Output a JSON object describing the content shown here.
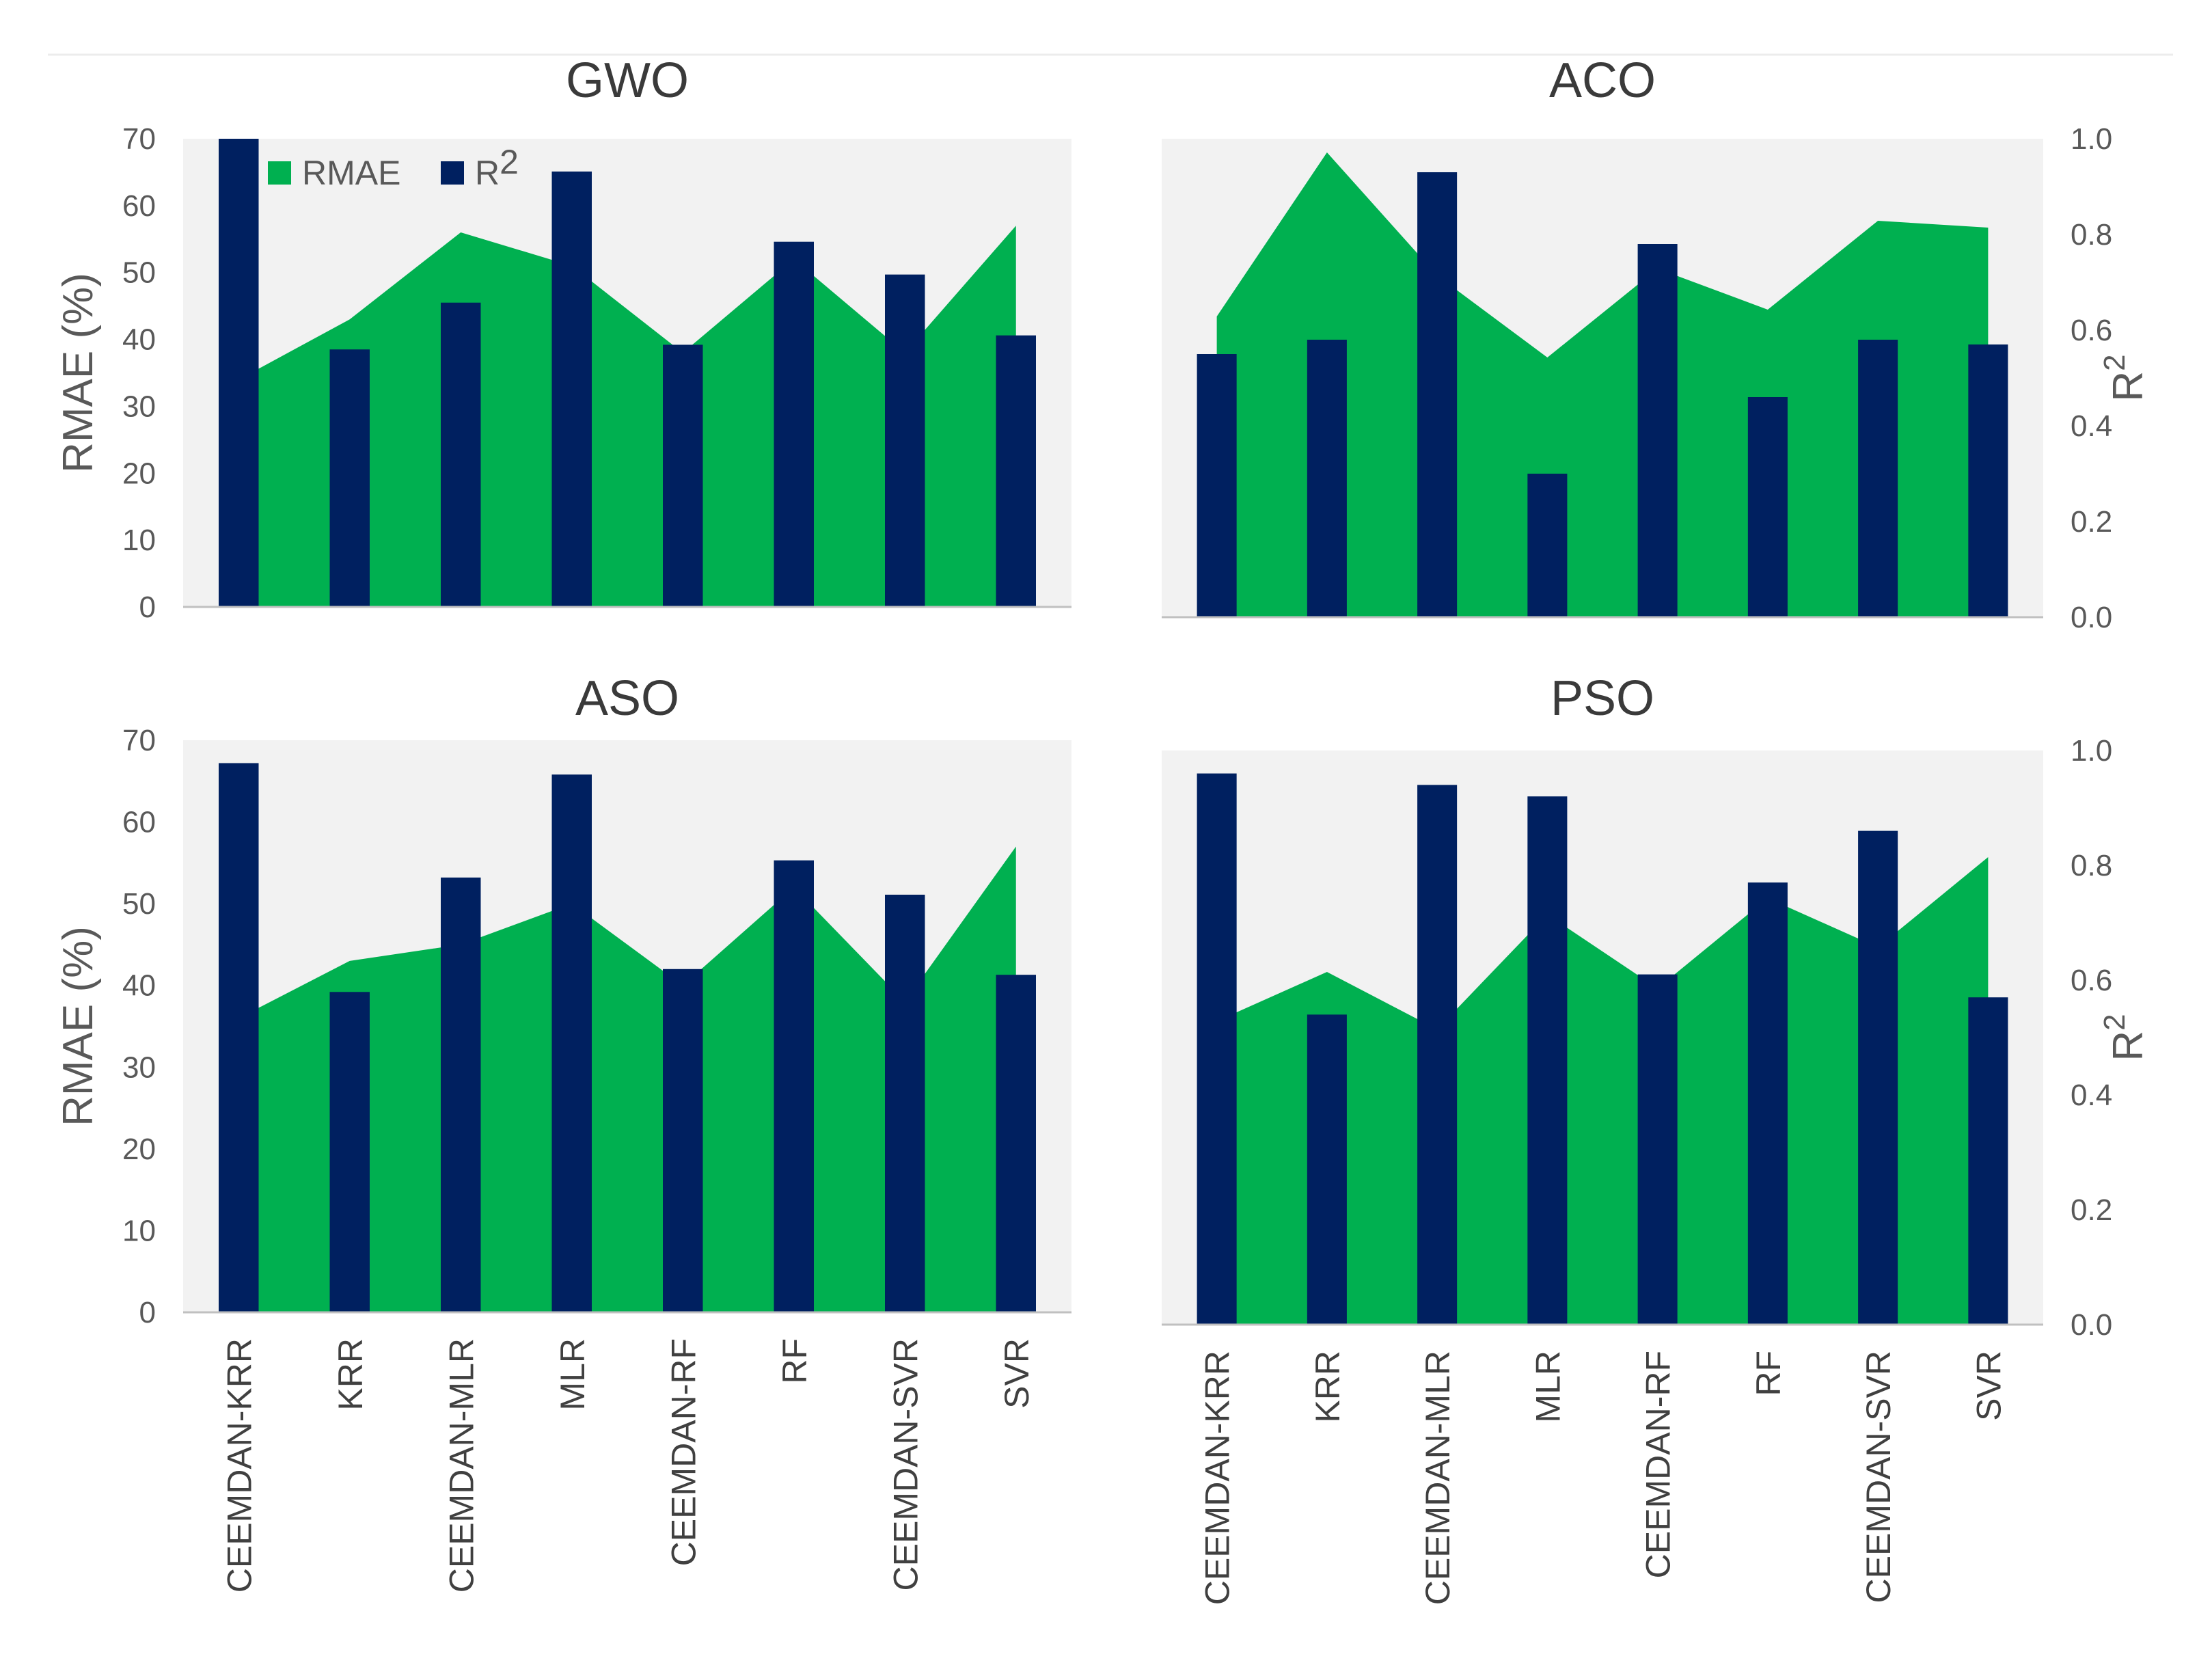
{
  "chart_data": {
    "type": "bar",
    "categories": [
      "CEEMDAN-KRR",
      "KRR",
      "CEEMDAN-MLR",
      "MLR",
      "CEEMDAN-RF",
      "RF",
      "CEEMDAN-SVR",
      "SVR"
    ],
    "legend": {
      "rmae_label": "RMAE",
      "r2_label": "R",
      "r2_sup": "2",
      "placement": "top-left"
    },
    "colors": {
      "rmae": "#00b050",
      "r2": "#002060",
      "plot_bg": "#f2f2f2",
      "grid": "#e6e6e6",
      "axis": "#c0c0c0"
    },
    "left_axis": {
      "label": "RMAE (%)",
      "ylim": [
        0,
        70
      ],
      "ticks": [
        0,
        10,
        20,
        30,
        40,
        50,
        60,
        70
      ]
    },
    "right_axis": {
      "label": "R",
      "label_sup": "2",
      "ylim": [
        0,
        1
      ],
      "ticks": [
        "0.0",
        "0.2",
        "0.4",
        "0.6",
        "0.8",
        "1.0"
      ]
    },
    "panels": [
      {
        "title": "GWO",
        "series": [
          {
            "name": "RMAE",
            "kind": "area",
            "values": [
              34,
              43,
              56,
              51,
              38,
              52,
              38,
              57
            ]
          },
          {
            "name": "R2",
            "kind": "bar",
            "values": [
              1.0,
              0.55,
              0.65,
              0.93,
              0.56,
              0.78,
              0.71,
              0.58
            ]
          }
        ]
      },
      {
        "title": "ACO",
        "series": [
          {
            "name": "RMAE",
            "kind": "area",
            "values": [
              44,
              68,
              50,
              38,
              51,
              45,
              58,
              57
            ]
          },
          {
            "name": "R2",
            "kind": "bar",
            "values": [
              0.55,
              0.58,
              0.93,
              0.3,
              0.78,
              0.46,
              0.58,
              0.57
            ]
          }
        ]
      },
      {
        "title": "ASO",
        "series": [
          {
            "name": "RMAE",
            "kind": "area",
            "values": [
              36,
              43,
              45,
              50,
              40,
              52,
              38,
              57
            ]
          },
          {
            "name": "R2",
            "kind": "bar",
            "values": [
              0.96,
              0.56,
              0.76,
              0.94,
              0.6,
              0.79,
              0.73,
              0.59
            ]
          }
        ]
      },
      {
        "title": "PSO",
        "series": [
          {
            "name": "RMAE",
            "kind": "area",
            "values": [
              37,
              43,
              36,
              50,
              41,
              52,
              46,
              57
            ]
          },
          {
            "name": "R2",
            "kind": "bar",
            "values": [
              0.96,
              0.54,
              0.94,
              0.92,
              0.61,
              0.77,
              0.86,
              0.57
            ]
          }
        ]
      }
    ]
  }
}
